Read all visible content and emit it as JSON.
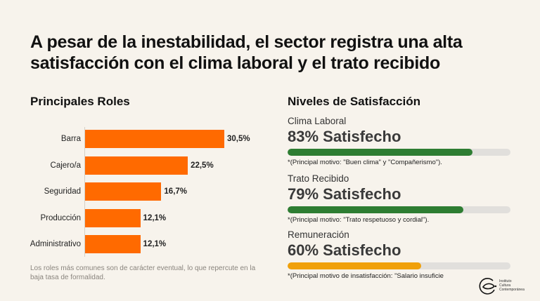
{
  "title": "A pesar de la inestabilidad, el sector registra una alta satisfacción con el clima laboral y el trato recibido",
  "roles_section": {
    "heading": "Principales Roles",
    "footnote": "Los roles más comunes son de carácter eventual, lo que repercute en la baja tasa de formalidad."
  },
  "chart_data": {
    "type": "bar",
    "orientation": "horizontal",
    "title": "Principales Roles",
    "categories": [
      "Barra",
      "Cajero/a",
      "Seguridad",
      "Producción",
      "Administrativo"
    ],
    "values": [
      30.5,
      22.5,
      16.7,
      12.1,
      12.1
    ],
    "value_labels": [
      "30,5%",
      "22,5%",
      "16,7%",
      "12,1%",
      "12,1%"
    ],
    "unit": "%",
    "xlabel": "",
    "ylabel": "",
    "xlim": [
      0,
      30.5
    ],
    "grid": false,
    "bar_color": "#ff6a00"
  },
  "satisfaction_section": {
    "heading": "Niveles de Satisfacción",
    "items": [
      {
        "label": "Clima Laboral",
        "value_text": "83% Satisfecho",
        "percent": 83,
        "color": "#2e7d32",
        "note": "*(Principal motivo: \"Buen clima\" y \"Compañerismo\")."
      },
      {
        "label": "Trato Recibido",
        "value_text": "79% Satisfecho",
        "percent": 79,
        "color": "#2e7d32",
        "note": "*(Principal motivo: \"Trato respetuoso y cordial\")."
      },
      {
        "label": "Remuneración",
        "value_text": "60% Satisfecho",
        "percent": 60,
        "color": "#f0a00a",
        "note": "*(Principal motivo de insatisfacción: \"Salario insuficie"
      }
    ]
  },
  "logo": {
    "name": "logo-instituto-cultura-contemporanea",
    "lines": [
      "Instituto",
      "Cultura",
      "Contemporánea"
    ]
  }
}
